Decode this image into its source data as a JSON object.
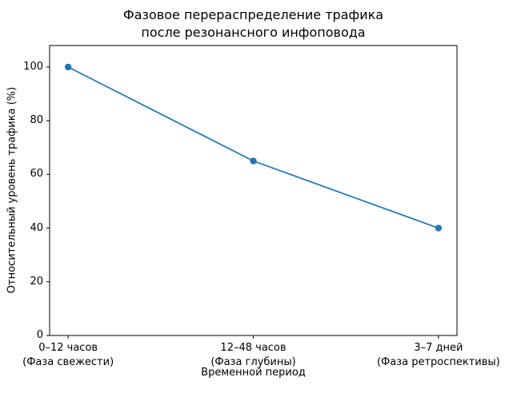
{
  "chart_data": {
    "type": "line",
    "title": "Фазовое перераспределение трафика\nпосле резонансного инфоповода",
    "xlabel": "Временной период",
    "ylabel": "Относительный уровень трафика (%)",
    "categories": [
      "0–12 часов\n(Фаза свежести)",
      "12–48 часов\n(Фаза глубины)",
      "3–7 дней\n(Фаза ретроспективы)"
    ],
    "values": [
      100,
      65,
      40
    ],
    "yticks": [
      0,
      20,
      40,
      60,
      80,
      100
    ],
    "ylim": [
      0,
      108
    ],
    "line_color": "#1f77b4",
    "marker": "circle",
    "grid": false,
    "legend": null,
    "background_color": "#ffffff",
    "axis_color": "#000000"
  }
}
